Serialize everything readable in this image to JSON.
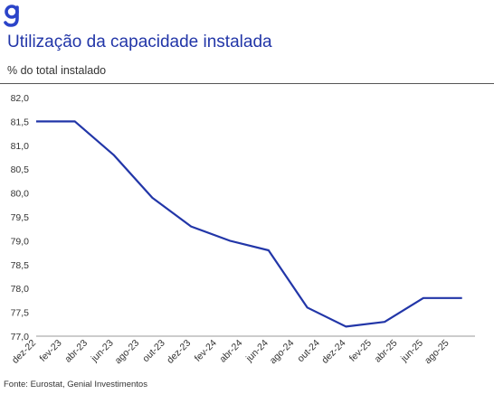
{
  "header": {
    "title": "Utilização da capacidade instalada",
    "subtitle": "% do total instalado",
    "logo_icon": "genial-g-logo-icon"
  },
  "footer": {
    "source": "Fonte: Eurostat, Genial Investimentos"
  },
  "colors": {
    "line": "#2236a8",
    "title": "#2236a8",
    "logo": "#2b44c9",
    "text": "#333333",
    "axis": "#999999"
  },
  "chart_data": {
    "type": "line",
    "title": "Utilização da capacidade instalada",
    "ylabel": "% do total instalado",
    "xlabel": "",
    "ylim": [
      77.0,
      82.0
    ],
    "yticks": [
      "82,0",
      "81,5",
      "81,0",
      "80,5",
      "80,0",
      "79,5",
      "79,0",
      "78,5",
      "78,0",
      "77,5",
      "77,0"
    ],
    "ytick_values": [
      82.0,
      81.5,
      81.0,
      80.5,
      80.0,
      79.5,
      79.0,
      78.5,
      78.0,
      77.5,
      77.0
    ],
    "x_tick_labels": [
      "dez-22",
      "fev-23",
      "abr-23",
      "jun-23",
      "ago-23",
      "out-23",
      "dez-23",
      "fev-24",
      "abr-24",
      "jun-24",
      "ago-24",
      "out-24",
      "dez-24",
      "fev-25",
      "abr-25",
      "jun-25",
      "ago-25"
    ],
    "x": [
      "dez-22",
      "mar-23",
      "jun-23",
      "set-23",
      "dez-23",
      "mar-24",
      "jun-24",
      "set-24",
      "dez-24",
      "mar-25",
      "jun-25",
      "set-25"
    ],
    "values": [
      81.5,
      81.5,
      80.8,
      79.9,
      79.3,
      79.0,
      78.8,
      77.6,
      77.2,
      77.3,
      77.8,
      77.8
    ],
    "grid": false,
    "legend": "none"
  }
}
